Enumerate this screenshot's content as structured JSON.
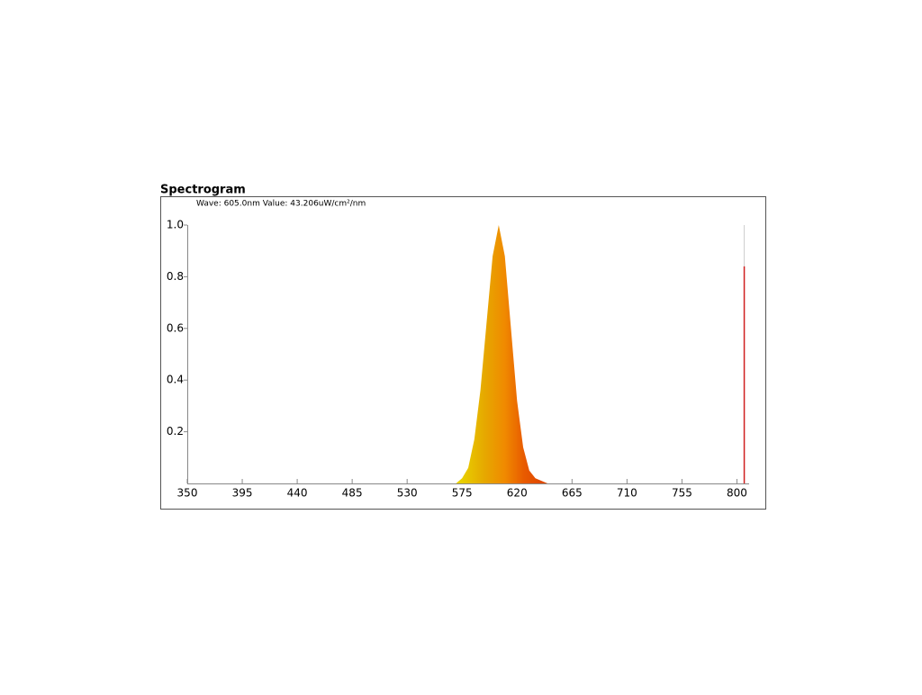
{
  "chart_data": {
    "type": "area",
    "title": "Spectrogram",
    "subtitle": "Wave: 605.0nm Value: 43.206uW/cm²/nm",
    "x": [
      570,
      575,
      580,
      585,
      590,
      595,
      600,
      605,
      610,
      615,
      620,
      625,
      630,
      635,
      640,
      645,
      650
    ],
    "values": [
      0,
      0.02,
      0.06,
      0.17,
      0.36,
      0.62,
      0.88,
      1.0,
      0.88,
      0.6,
      0.32,
      0.14,
      0.05,
      0.02,
      0.01,
      0,
      0
    ],
    "xlim": [
      350,
      810
    ],
    "ylim": [
      0,
      1
    ],
    "xticks": [
      350,
      395,
      440,
      485,
      530,
      575,
      620,
      665,
      710,
      755,
      800
    ],
    "yticks": [
      0.2,
      0.4,
      0.6,
      {
        "value": 0.8,
        "label": "0.8"
      },
      {
        "value": 1.0,
        "label": "1.0"
      }
    ],
    "marker": {
      "x": 806,
      "value": 0.84,
      "color": "#d02020"
    }
  }
}
